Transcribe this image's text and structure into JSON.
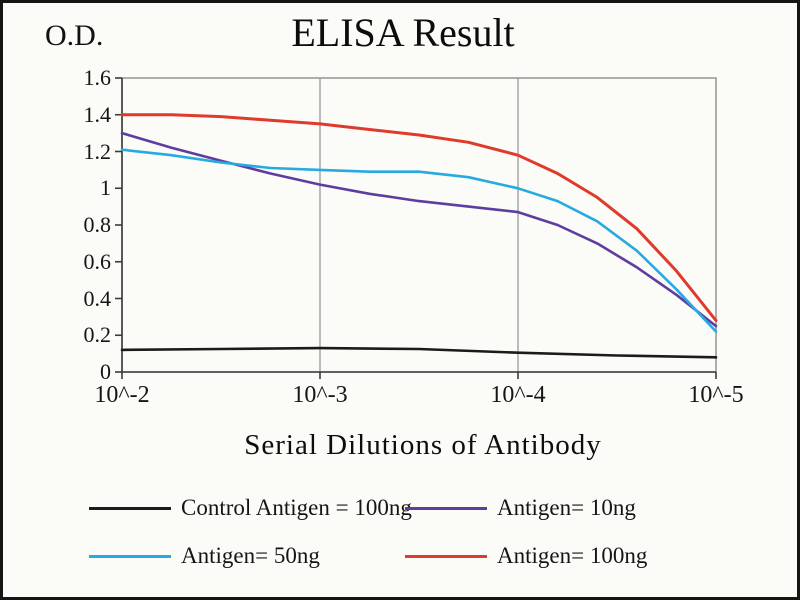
{
  "chart_data": {
    "type": "line",
    "title": "ELISA Result",
    "ylabel": "O.D.",
    "xlabel": "Serial Dilutions  of Antibody",
    "x_tick_labels": [
      "10^-2",
      "10^-3",
      "10^-4",
      "10^-5"
    ],
    "y_tick_labels": [
      "1.6",
      "1.4",
      "1.2",
      "1",
      "0.8",
      "0.6",
      "0.4",
      "0.2",
      "0"
    ],
    "ylim": [
      0,
      1.6
    ],
    "x_axis_note": "serial dilution, log scale from 10^-2 to 10^-5",
    "grid": "vertical-major-only",
    "legend_position": "below",
    "series": [
      {
        "name": "Control Antigen = 100ng",
        "color": "#1b1b1b",
        "points": [
          [
            0,
            0.12
          ],
          [
            0.5,
            0.125
          ],
          [
            1,
            0.13
          ],
          [
            1.5,
            0.125
          ],
          [
            2,
            0.105
          ],
          [
            2.5,
            0.09
          ],
          [
            3,
            0.08
          ]
        ]
      },
      {
        "name": "Antigen= 10ng",
        "color": "#5f3da0",
        "points": [
          [
            0,
            1.3
          ],
          [
            0.25,
            1.22
          ],
          [
            0.5,
            1.15
          ],
          [
            0.75,
            1.08
          ],
          [
            1,
            1.02
          ],
          [
            1.25,
            0.97
          ],
          [
            1.5,
            0.93
          ],
          [
            1.75,
            0.9
          ],
          [
            2,
            0.87
          ],
          [
            2.2,
            0.8
          ],
          [
            2.4,
            0.7
          ],
          [
            2.6,
            0.57
          ],
          [
            2.8,
            0.42
          ],
          [
            3,
            0.25
          ]
        ]
      },
      {
        "name": "Antigen= 50ng",
        "color": "#27aae1",
        "points": [
          [
            0,
            1.21
          ],
          [
            0.25,
            1.18
          ],
          [
            0.5,
            1.14
          ],
          [
            0.75,
            1.11
          ],
          [
            1,
            1.1
          ],
          [
            1.25,
            1.09
          ],
          [
            1.5,
            1.09
          ],
          [
            1.75,
            1.06
          ],
          [
            2,
            1.0
          ],
          [
            2.2,
            0.93
          ],
          [
            2.4,
            0.82
          ],
          [
            2.6,
            0.66
          ],
          [
            2.8,
            0.45
          ],
          [
            3,
            0.22
          ]
        ]
      },
      {
        "name": "Antigen= 100ng",
        "color": "#df3a2b",
        "points": [
          [
            0,
            1.4
          ],
          [
            0.25,
            1.4
          ],
          [
            0.5,
            1.39
          ],
          [
            0.75,
            1.37
          ],
          [
            1,
            1.35
          ],
          [
            1.25,
            1.32
          ],
          [
            1.5,
            1.29
          ],
          [
            1.75,
            1.25
          ],
          [
            2,
            1.18
          ],
          [
            2.2,
            1.08
          ],
          [
            2.4,
            0.95
          ],
          [
            2.6,
            0.78
          ],
          [
            2.8,
            0.55
          ],
          [
            3,
            0.28
          ]
        ]
      }
    ]
  }
}
